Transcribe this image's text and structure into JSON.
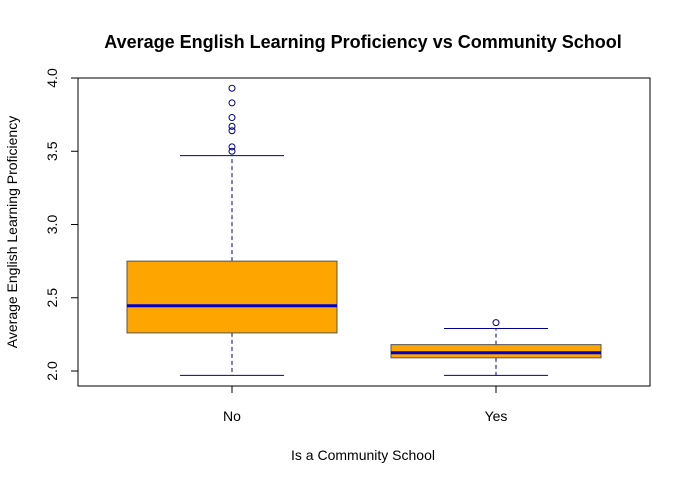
{
  "chart_data": {
    "type": "box",
    "title": "Average English Learning Proficiency vs Community School",
    "xlabel": "Is a Community School",
    "ylabel": "Average English Learning Proficiency",
    "ylim": [
      1.9,
      4.0
    ],
    "yticks": [
      2.0,
      2.5,
      3.0,
      3.5,
      4.0
    ],
    "ytick_labels": [
      "2.0",
      "2.5",
      "3.0",
      "3.5",
      "4.0"
    ],
    "categories": [
      "No",
      "Yes"
    ],
    "boxes": [
      {
        "category": "No",
        "whisker_low": 1.97,
        "q1": 2.26,
        "median": 2.445,
        "q3": 2.75,
        "whisker_high": 3.47,
        "outliers": [
          3.5,
          3.53,
          3.64,
          3.67,
          3.73,
          3.83,
          3.93
        ]
      },
      {
        "category": "Yes",
        "whisker_low": 1.97,
        "q1": 2.09,
        "median": 2.125,
        "q3": 2.18,
        "whisker_high": 2.29,
        "outliers": [
          2.33
        ]
      }
    ],
    "colors": {
      "box_fill": "#FFA500",
      "median": "#0000CD",
      "whisker": "#00008B",
      "outlier": "#00008B",
      "frame": "#000000"
    },
    "grid": false,
    "legend": "none"
  }
}
